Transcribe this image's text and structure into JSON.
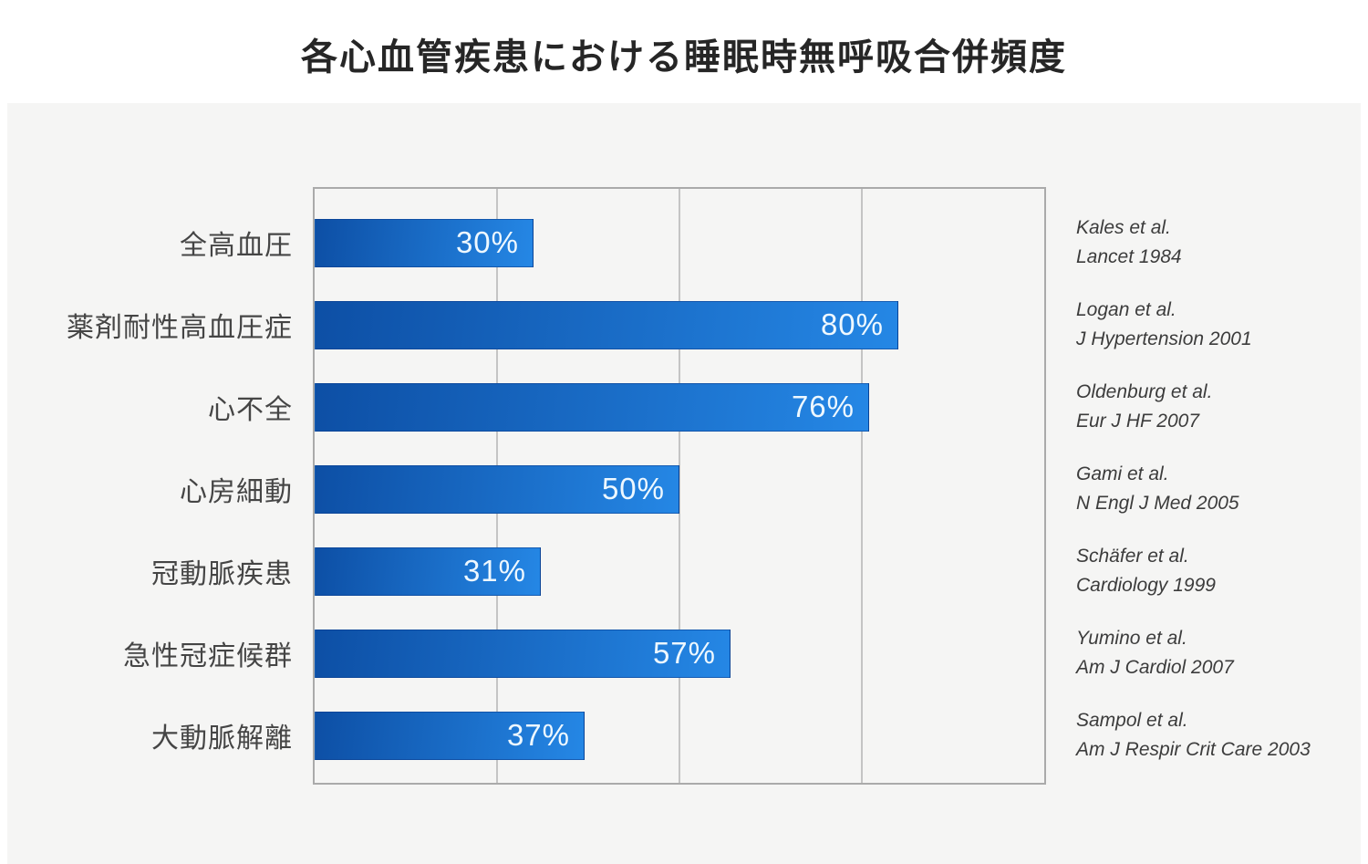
{
  "title": "各心血管疾患における睡眠時無呼吸合併頻度",
  "colors": {
    "page_background": "#ffffff",
    "panel_background": "#f5f5f4",
    "plot_border": "#aaaaaa",
    "gridline": "#c4c4c4",
    "bar_gradient_start": "#0d4fa5",
    "bar_gradient_end": "#2587e5",
    "bar_value_text": "#eef8ff",
    "category_text": "#454545",
    "citation_text": "#3c3c3c",
    "title_text": "#262626"
  },
  "chart_data": {
    "type": "bar",
    "orientation": "horizontal",
    "title": "各心血管疾患における睡眠時無呼吸合併頻度",
    "xlabel": "",
    "ylabel": "",
    "xlim": [
      0,
      100
    ],
    "grid": true,
    "gridlines_percent": [
      25,
      50,
      75
    ],
    "legend": false,
    "categories": [
      "全高血圧",
      "薬剤耐性高血圧症",
      "心不全",
      "心房細動",
      "冠動脈疾患",
      "急性冠症候群",
      "大動脈解離"
    ],
    "values": [
      30,
      80,
      76,
      50,
      31,
      57,
      37
    ],
    "value_labels": [
      "30%",
      "80%",
      "76%",
      "50%",
      "31%",
      "57%",
      "37%"
    ],
    "citations": [
      {
        "line1": "Kales et al.",
        "line2": "Lancet 1984"
      },
      {
        "line1": "Logan et al.",
        "line2": "J Hypertension 2001"
      },
      {
        "line1": "Oldenburg et al.",
        "line2": "Eur J HF 2007"
      },
      {
        "line1": "Gami et al.",
        "line2": "N Engl J Med 2005"
      },
      {
        "line1": "Schäfer et al.",
        "line2": "Cardiology 1999"
      },
      {
        "line1": "Yumino et al.",
        "line2": "Am J Cardiol 2007"
      },
      {
        "line1": "Sampol et al.",
        "line2": "Am J Respir Crit Care 2003"
      }
    ]
  }
}
